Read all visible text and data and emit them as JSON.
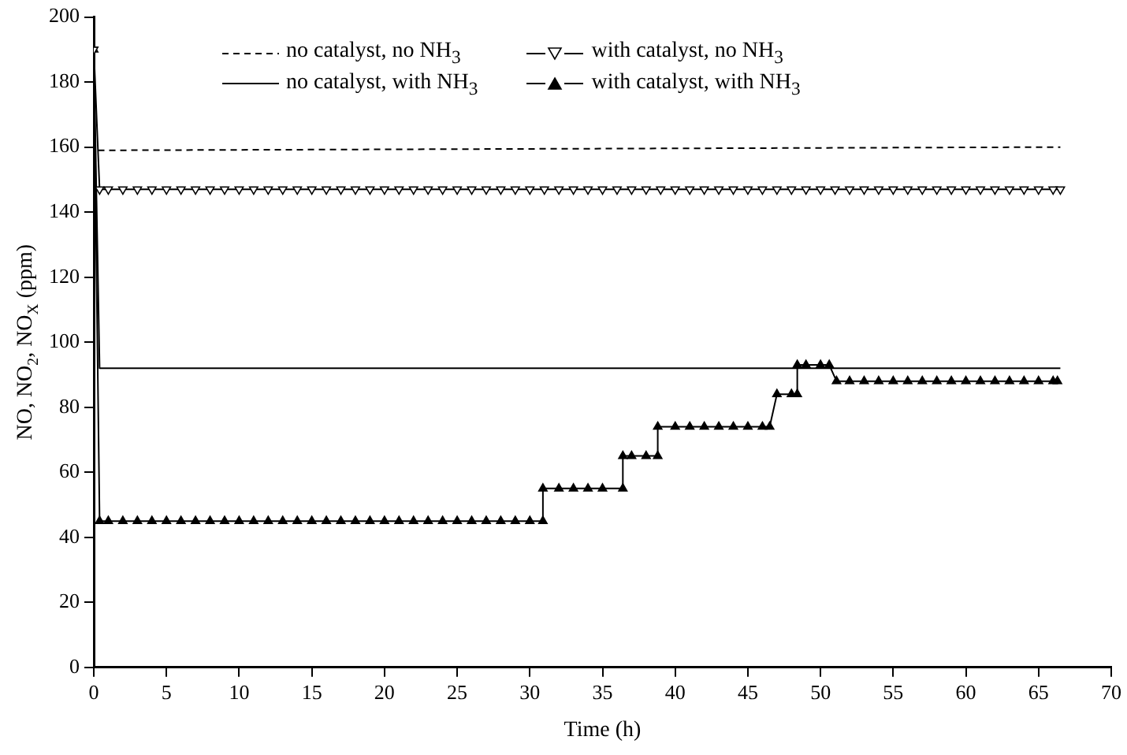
{
  "chart_data": {
    "type": "line",
    "xlabel": "Time (h)",
    "ylabel": "NO, NO$_{2}$, NO$_{X}$ (ppm)",
    "xlim": [
      0,
      70
    ],
    "xticks": [
      0,
      5,
      10,
      15,
      20,
      25,
      30,
      35,
      40,
      45,
      50,
      55,
      60,
      65,
      70
    ],
    "ylim": [
      0,
      200
    ],
    "yticks": [
      0,
      20,
      40,
      60,
      80,
      100,
      120,
      140,
      160,
      180,
      200
    ],
    "grid": false,
    "legend": "top",
    "series": [
      {
        "name": "no catalyst, no NH$_{3}$",
        "color": "#000000",
        "line_style": "dashed",
        "marker": "none",
        "x": [
          0.3,
          66.5
        ],
        "values": [
          159,
          160
        ]
      },
      {
        "name": "with catalyst, no NH$_{3}$",
        "color": "#000000",
        "line_style": "solid",
        "marker": "triangle_down",
        "x": [
          0,
          0.4,
          1,
          2,
          3,
          4,
          5,
          6,
          7,
          8,
          9,
          10,
          11,
          12,
          13,
          14,
          15,
          16,
          17,
          18,
          19,
          20,
          21,
          22,
          23,
          24,
          25,
          26,
          27,
          28,
          29,
          30,
          31,
          32,
          33,
          34,
          35,
          36,
          37,
          38,
          39,
          40,
          41,
          42,
          43,
          44,
          45,
          46,
          47,
          48,
          49,
          50,
          51,
          52,
          53,
          54,
          55,
          56,
          57,
          58,
          59,
          60,
          61,
          62,
          63,
          64,
          65,
          66,
          66.5
        ],
        "values": [
          190,
          147,
          147,
          147,
          147,
          147,
          147,
          147,
          147,
          147,
          147,
          147,
          147,
          147,
          147,
          147,
          147,
          147,
          147,
          147,
          147,
          147,
          147,
          147,
          147,
          147,
          147,
          147,
          147,
          147,
          147,
          147,
          147,
          147,
          147,
          147,
          147,
          147,
          147,
          147,
          147,
          147,
          147,
          147,
          147,
          147,
          147,
          147,
          147,
          147,
          147,
          147,
          147,
          147,
          147,
          147,
          147,
          147,
          147,
          147,
          147,
          147,
          147,
          147,
          147,
          147,
          147,
          147,
          147
        ]
      },
      {
        "name": "no catalyst, with NH$_{3}$",
        "color": "#000000",
        "line_style": "solid",
        "marker": "none",
        "x": [
          0,
          0.4,
          66.5
        ],
        "values": [
          190,
          92,
          92
        ]
      },
      {
        "name": "with catalyst, with NH$_{3}$",
        "color": "#000000",
        "line_style": "solid",
        "marker": "triangle",
        "x": [
          0,
          0.4,
          1,
          2,
          3,
          4,
          5,
          6,
          7,
          8,
          9,
          10,
          11,
          12,
          13,
          14,
          15,
          16,
          17,
          18,
          19,
          20,
          21,
          22,
          23,
          24,
          25,
          26,
          27,
          28,
          29,
          30,
          30.9,
          30.9,
          32,
          33,
          34,
          35,
          36.4,
          36.4,
          37,
          38,
          38.8,
          38.8,
          40,
          41,
          42,
          43,
          44,
          45,
          46,
          46.5,
          47,
          48,
          48.4,
          48.4,
          49,
          50,
          50.6,
          51.1,
          52,
          53,
          54,
          55,
          56,
          57,
          58,
          59,
          60,
          61,
          62,
          63,
          64,
          65,
          66,
          66.3
        ],
        "values": [
          190,
          45,
          45,
          45,
          45,
          45,
          45,
          45,
          45,
          45,
          45,
          45,
          45,
          45,
          45,
          45,
          45,
          45,
          45,
          45,
          45,
          45,
          45,
          45,
          45,
          45,
          45,
          45,
          45,
          45,
          45,
          45,
          45,
          55,
          55,
          55,
          55,
          55,
          55,
          65,
          65,
          65,
          65,
          74,
          74,
          74,
          74,
          74,
          74,
          74,
          74,
          74,
          84,
          84,
          84,
          93,
          93,
          93,
          93,
          88,
          88,
          88,
          88,
          88,
          88,
          88,
          88,
          88,
          88,
          88,
          88,
          88,
          88,
          88,
          88,
          88
        ]
      }
    ]
  }
}
